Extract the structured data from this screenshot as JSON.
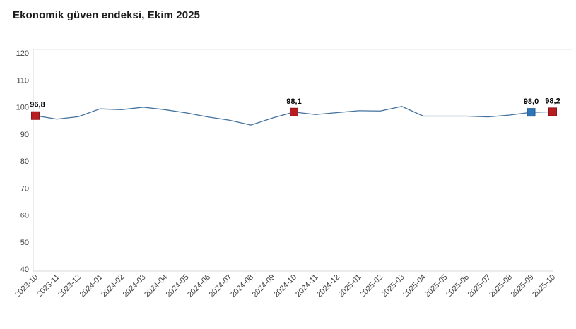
{
  "title": "Ekonomik güven endeksi, Ekim 2025",
  "colors": {
    "line": "#41719C",
    "marker_red": "#B81D22",
    "marker_red_stroke": "#8F1419",
    "marker_blue": "#2E75B6",
    "marker_blue_stroke": "#1F5C96",
    "axis_line": "#D9D9D9",
    "top_border": "#E6E6E6",
    "tick_text": "#404040",
    "data_label": "#000000"
  },
  "chart_data": {
    "type": "line",
    "title": "Ekonomik güven endeksi, Ekim 2025",
    "xlabel": "",
    "ylabel": "",
    "ylim": [
      40,
      120
    ],
    "yticks": [
      40,
      50,
      60,
      70,
      80,
      90,
      100,
      110,
      120
    ],
    "grid": false,
    "legend_position": "none",
    "categories": [
      "2023-10",
      "2023-11",
      "2023-12",
      "2024-01",
      "2024-02",
      "2024-03",
      "2024-04",
      "2024-05",
      "2024-06",
      "2024-07",
      "2024-08",
      "2024-09",
      "2024-10",
      "2024-11",
      "2024-12",
      "2025-01",
      "2025-02",
      "2025-03",
      "2025-04",
      "2025-05",
      "2025-06",
      "2025-07",
      "2025-08",
      "2025-09",
      "2025-10"
    ],
    "values": [
      96.8,
      95.5,
      96.4,
      99.3,
      99.0,
      99.9,
      99.0,
      97.8,
      96.3,
      95.1,
      93.3,
      95.9,
      98.1,
      97.2,
      97.9,
      98.6,
      98.5,
      100.2,
      96.6,
      96.6,
      96.6,
      96.3,
      97.0,
      98.0,
      98.2
    ],
    "highlights": [
      {
        "index": 0,
        "label": "96,8",
        "color": "red"
      },
      {
        "index": 12,
        "label": "98,1",
        "color": "red"
      },
      {
        "index": 23,
        "label": "98,0",
        "color": "blue"
      },
      {
        "index": 24,
        "label": "98,2",
        "color": "red"
      }
    ]
  }
}
